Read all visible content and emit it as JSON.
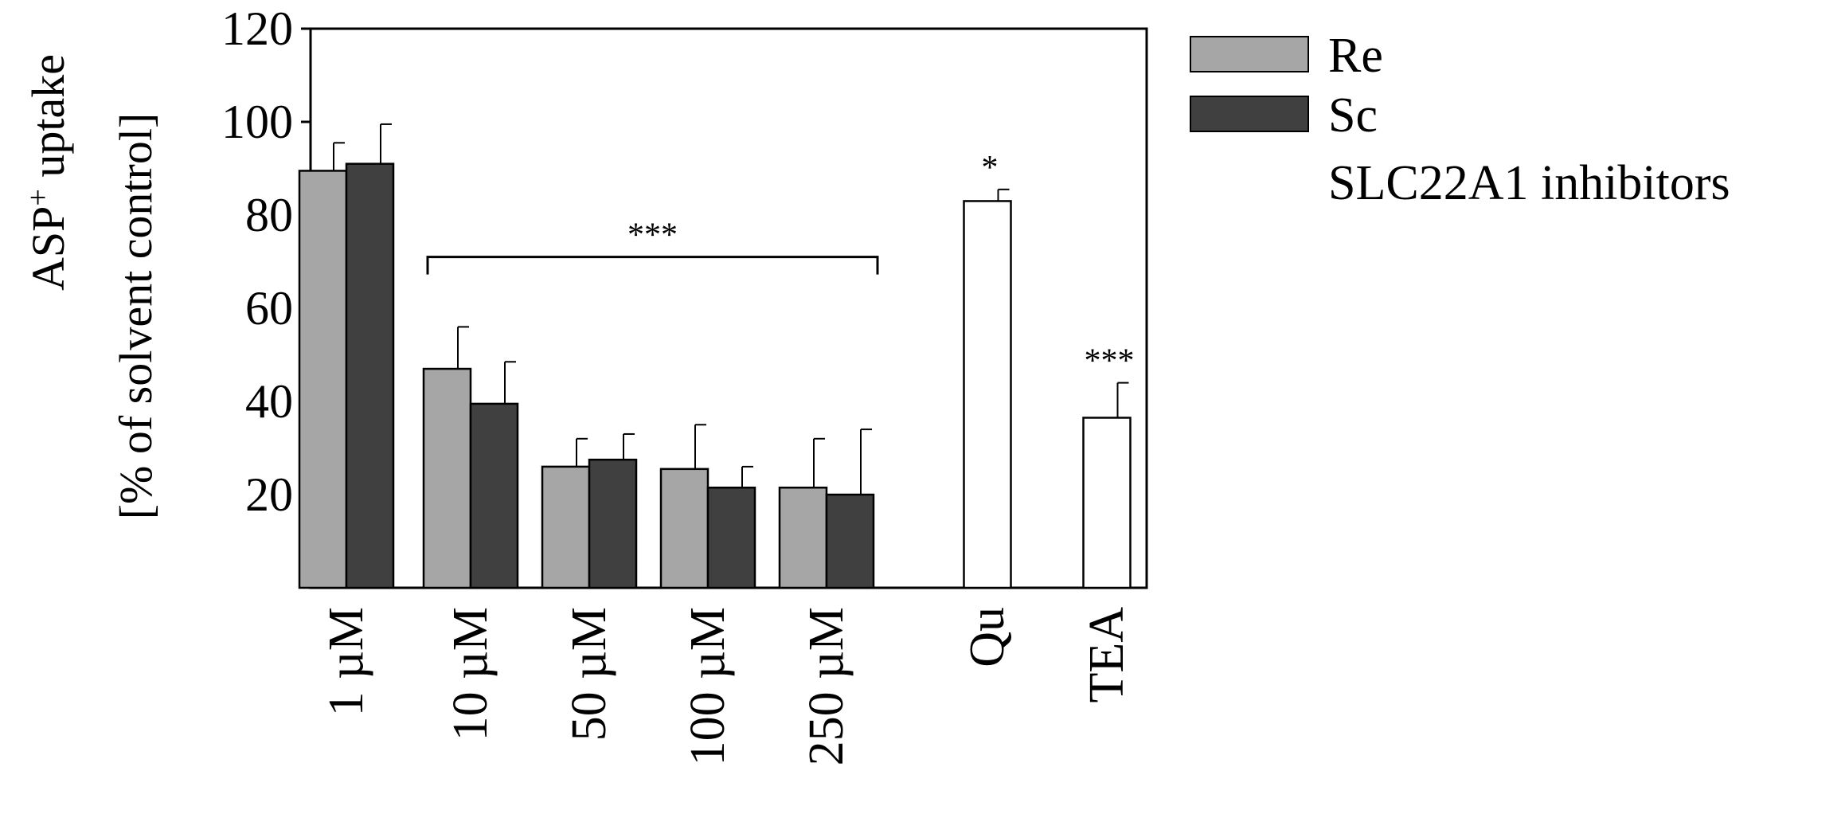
{
  "chart_data": {
    "type": "bar",
    "ylabel_line1": "ASP",
    "ylabel_sup": "+",
    "ylabel_line1_rest": " uptake",
    "ylabel_line2": "[% of solvent control]",
    "ylim": [
      0,
      120
    ],
    "yticks": [
      20,
      40,
      60,
      80,
      100,
      120
    ],
    "grid": false,
    "legend_position": "right",
    "groups": [
      {
        "label": "1 µM",
        "bars": [
          {
            "series": "Re",
            "value": 89.5,
            "error": 6
          },
          {
            "series": "Sc",
            "value": 91,
            "error": 8.5
          }
        ]
      },
      {
        "label": "10 µM",
        "bars": [
          {
            "series": "Re",
            "value": 47,
            "error": 9
          },
          {
            "series": "Sc",
            "value": 39.5,
            "error": 9
          }
        ]
      },
      {
        "label": "50 µM",
        "bars": [
          {
            "series": "Re",
            "value": 26,
            "error": 6
          },
          {
            "series": "Sc",
            "value": 27.5,
            "error": 5.5
          }
        ]
      },
      {
        "label": "100 µM",
        "bars": [
          {
            "series": "Re",
            "value": 25.5,
            "error": 9.5
          },
          {
            "series": "Sc",
            "value": 21.5,
            "error": 4.5
          }
        ]
      },
      {
        "label": "250 µM",
        "bars": [
          {
            "series": "Re",
            "value": 21.5,
            "error": 10.5
          },
          {
            "series": "Sc",
            "value": 20,
            "error": 14
          }
        ]
      },
      {
        "label": "Qu",
        "bars": [
          {
            "series": "SLC22A1 inhibitors",
            "value": 83,
            "error": 2.5,
            "sig": "*"
          }
        ]
      },
      {
        "label": "TEA",
        "bars": [
          {
            "series": "SLC22A1 inhibitors",
            "value": 36.5,
            "error": 7.5,
            "sig": "***"
          }
        ]
      }
    ],
    "bracket": {
      "from_group": 1,
      "to_group": 4,
      "value": 71,
      "label": "***"
    },
    "series": [
      {
        "name": "Re",
        "color": "#a6a6a6"
      },
      {
        "name": "Sc",
        "color": "#404040"
      },
      {
        "name": "SLC22A1 inhibitors",
        "color": "#ffffff"
      }
    ]
  }
}
